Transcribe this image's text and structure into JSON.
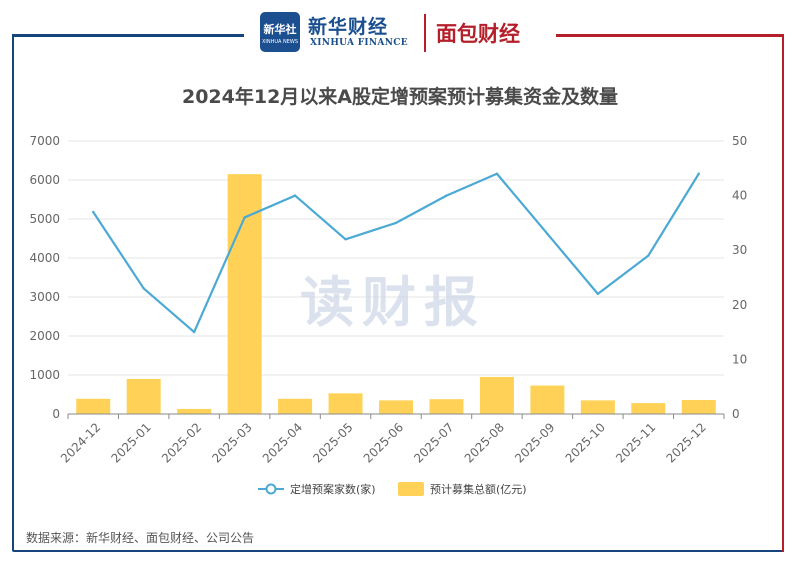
{
  "header": {
    "xinhua_logo_text": "新华社",
    "xinhua_logo_sub": "XINHUA NEWS",
    "xinhua_name": "新华财经",
    "xinhua_sub": "XINHUA FINANCE",
    "mianbao_name": "面包财经"
  },
  "watermark": "读财报",
  "source": "数据来源：新华财经、面包财经、公司公告",
  "colors": {
    "bar": "#ffd257",
    "line": "#4ba9d4",
    "frame_blue": "#16457e",
    "frame_red": "#b51f2a"
  },
  "chart_data": {
    "type": "bar",
    "title": "2024年12月以来A股定增预案预计募集资金及数量",
    "categories": [
      "2024-12",
      "2025-01",
      "2025-02",
      "2025-03",
      "2025-04",
      "2025-05",
      "2025-06",
      "2025-07",
      "2025-08",
      "2025-09",
      "2025-10",
      "2025-11",
      "2025-12"
    ],
    "y_left": {
      "min": 0,
      "max": 7000,
      "ticks": [
        0,
        1000,
        2000,
        3000,
        4000,
        5000,
        6000,
        7000
      ]
    },
    "y_right": {
      "min": 0,
      "max": 50,
      "ticks": [
        0,
        10,
        20,
        30,
        40,
        50
      ]
    },
    "grid": true,
    "legend_position": "bottom",
    "series": [
      {
        "name": "定增预案家数(家)",
        "type": "line",
        "axis": "right",
        "values": [
          37,
          23,
          15,
          36,
          40,
          32,
          35,
          40,
          44,
          33,
          22,
          29,
          44
        ]
      },
      {
        "name": "预计募集总额(亿元)",
        "type": "bar",
        "axis": "left",
        "values": [
          390,
          900,
          130,
          6150,
          390,
          530,
          350,
          380,
          950,
          730,
          350,
          280,
          360
        ]
      }
    ]
  }
}
